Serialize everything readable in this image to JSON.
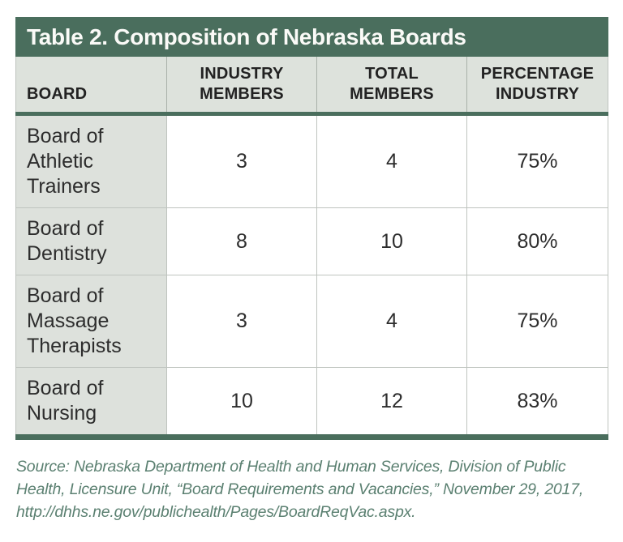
{
  "chart_data": {
    "type": "table",
    "title": "Table 2. Composition of Nebraska Boards",
    "columns": [
      "BOARD",
      "INDUSTRY\nMEMBERS",
      "TOTAL\nMEMBERS",
      "PERCENTAGE\nINDUSTRY"
    ],
    "rows": [
      [
        "Board of Athletic Trainers",
        "3",
        "4",
        "75%"
      ],
      [
        "Board of Dentistry",
        "8",
        "10",
        "80%"
      ],
      [
        "Board of Massage Therapists",
        "3",
        "4",
        "75%"
      ],
      [
        "Board of Nursing",
        "10",
        "12",
        "83%"
      ]
    ]
  },
  "source_note": "Source: Nebraska Department of Health and Human Services, Division of Public Health, Licensure Unit, “Board Requirements and Vacancies,” November 29, 2017, http://dhhs.ne.gov/publichealth/Pages/BoardReqVac.aspx.",
  "colors": {
    "accent_green": "#4a6e5d",
    "header_bg": "#dde2dc",
    "board_column_bg": "#dde1dc",
    "cell_border": "#bfc4bf",
    "source_text": "#5b8071",
    "title_text": "#fafaf7",
    "body_text": "#2d2d2d"
  }
}
